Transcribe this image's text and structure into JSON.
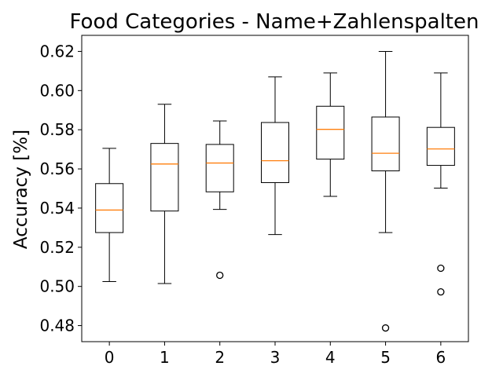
{
  "chart_data": {
    "type": "box",
    "title": "Food Categories - Name+Zahlenspalten",
    "xlabel": "",
    "ylabel": "Accuracy [%]",
    "categories": [
      "0",
      "1",
      "2",
      "3",
      "4",
      "5",
      "6"
    ],
    "ylim": [
      0.4718,
      0.6282
    ],
    "yticks": [
      0.48,
      0.5,
      0.52,
      0.54,
      0.56,
      0.58,
      0.6,
      0.62
    ],
    "ytick_labels": [
      "0.48",
      "0.50",
      "0.52",
      "0.54",
      "0.56",
      "0.58",
      "0.60",
      "0.62"
    ],
    "grid": false,
    "boxes": [
      {
        "category": "0",
        "whisker_low": 0.5025,
        "q1": 0.5275,
        "median": 0.539,
        "q3": 0.5525,
        "whisker_high": 0.5705,
        "outliers": []
      },
      {
        "category": "1",
        "whisker_low": 0.5015,
        "q1": 0.5385,
        "median": 0.5625,
        "q3": 0.573,
        "whisker_high": 0.593,
        "outliers": []
      },
      {
        "category": "2",
        "whisker_low": 0.5393,
        "q1": 0.5483,
        "median": 0.563,
        "q3": 0.5725,
        "whisker_high": 0.5845,
        "outliers": [
          0.5057
        ]
      },
      {
        "category": "3",
        "whisker_low": 0.5265,
        "q1": 0.553,
        "median": 0.5642,
        "q3": 0.5837,
        "whisker_high": 0.607,
        "outliers": []
      },
      {
        "category": "4",
        "whisker_low": 0.546,
        "q1": 0.565,
        "median": 0.5802,
        "q3": 0.592,
        "whisker_high": 0.609,
        "outliers": []
      },
      {
        "category": "5",
        "whisker_low": 0.5275,
        "q1": 0.559,
        "median": 0.568,
        "q3": 0.5865,
        "whisker_high": 0.62,
        "outliers": [
          0.4788
        ]
      },
      {
        "category": "6",
        "whisker_low": 0.5502,
        "q1": 0.5618,
        "median": 0.5702,
        "q3": 0.5812,
        "whisker_high": 0.609,
        "outliers": [
          0.5093,
          0.4972
        ]
      }
    ],
    "colors": {
      "box": "#000000",
      "median": "#ff7f0e",
      "background": "#ffffff"
    }
  }
}
